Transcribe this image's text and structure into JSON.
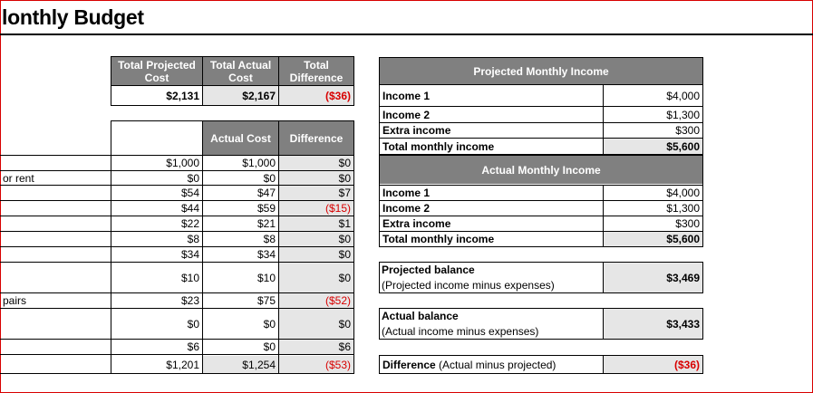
{
  "sheet": {
    "title": "lonthly Budget"
  },
  "summary": {
    "headers": [
      "Total Projected Cost",
      "Total Actual Cost",
      "Total Difference"
    ],
    "values": [
      "$2,131",
      "$2,167",
      "($36)"
    ]
  },
  "expenses": {
    "headers": [
      "",
      "Actual Cost",
      "Difference"
    ],
    "row_labels": [
      "",
      "or rent",
      "",
      "",
      "",
      "",
      "",
      "",
      "pairs",
      "",
      "",
      ""
    ],
    "projected": [
      "$1,000",
      "$0",
      "$54",
      "$44",
      "$22",
      "$8",
      "$34",
      "$10",
      "$23",
      "$0",
      "$6",
      "$1,201"
    ],
    "actual": [
      "$1,000",
      "$0",
      "$47",
      "$59",
      "$21",
      "$8",
      "$34",
      "$10",
      "$75",
      "$0",
      "$0",
      "$1,254"
    ],
    "difference": [
      "$0",
      "$0",
      "$7",
      "($15)",
      "$1",
      "$0",
      "$0",
      "$0",
      "($52)",
      "$0",
      "$6",
      "($53)"
    ]
  },
  "projected_income": {
    "header": "Projected Monthly Income",
    "rows": [
      {
        "label": "Income 1",
        "value": "$4,000"
      },
      {
        "label": "Income 2",
        "value": "$1,300"
      },
      {
        "label": "Extra income",
        "value": "$300"
      },
      {
        "label": "Total monthly income",
        "value": "$5,600"
      }
    ]
  },
  "actual_income": {
    "header": "Actual Monthly Income",
    "rows": [
      {
        "label": "Income 1",
        "value": "$4,000"
      },
      {
        "label": "Income 2",
        "value": "$1,300"
      },
      {
        "label": "Extra income",
        "value": "$300"
      },
      {
        "label": "Total monthly income",
        "value": "$5,600"
      }
    ]
  },
  "balances": {
    "projected_label": "Projected balance",
    "projected_note": "(Projected income minus expenses)",
    "projected_value": "$3,469",
    "actual_label": "Actual balance",
    "actual_note": "(Actual income minus expenses)",
    "actual_value": "$3,433",
    "difference_label": "Difference",
    "difference_note": "(Actual minus projected)",
    "difference_value": "($36)"
  },
  "colors": {
    "header_gray": "#808080",
    "cell_gray": "#e6e6e6",
    "negative": "#d80000",
    "frame": "#d80000"
  }
}
